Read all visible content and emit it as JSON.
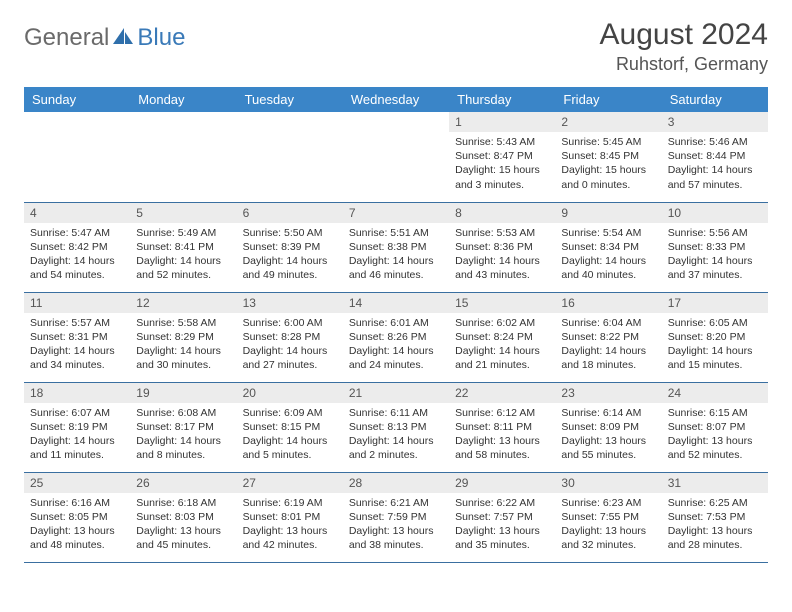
{
  "logo": {
    "part1": "General",
    "part2": "Blue"
  },
  "title": "August 2024",
  "location": "Ruhstorf, Germany",
  "colors": {
    "header_bg": "#3a85c8",
    "header_text": "#ffffff",
    "daynum_bg": "#ececec",
    "border": "#3a6fa0",
    "logo_gray": "#6a6a6a",
    "logo_blue": "#3a7ab8"
  },
  "weekdays": [
    "Sunday",
    "Monday",
    "Tuesday",
    "Wednesday",
    "Thursday",
    "Friday",
    "Saturday"
  ],
  "weeks": [
    [
      null,
      null,
      null,
      null,
      {
        "n": "1",
        "sr": "Sunrise: 5:43 AM",
        "ss": "Sunset: 8:47 PM",
        "d1": "Daylight: 15 hours",
        "d2": "and 3 minutes."
      },
      {
        "n": "2",
        "sr": "Sunrise: 5:45 AM",
        "ss": "Sunset: 8:45 PM",
        "d1": "Daylight: 15 hours",
        "d2": "and 0 minutes."
      },
      {
        "n": "3",
        "sr": "Sunrise: 5:46 AM",
        "ss": "Sunset: 8:44 PM",
        "d1": "Daylight: 14 hours",
        "d2": "and 57 minutes."
      }
    ],
    [
      {
        "n": "4",
        "sr": "Sunrise: 5:47 AM",
        "ss": "Sunset: 8:42 PM",
        "d1": "Daylight: 14 hours",
        "d2": "and 54 minutes."
      },
      {
        "n": "5",
        "sr": "Sunrise: 5:49 AM",
        "ss": "Sunset: 8:41 PM",
        "d1": "Daylight: 14 hours",
        "d2": "and 52 minutes."
      },
      {
        "n": "6",
        "sr": "Sunrise: 5:50 AM",
        "ss": "Sunset: 8:39 PM",
        "d1": "Daylight: 14 hours",
        "d2": "and 49 minutes."
      },
      {
        "n": "7",
        "sr": "Sunrise: 5:51 AM",
        "ss": "Sunset: 8:38 PM",
        "d1": "Daylight: 14 hours",
        "d2": "and 46 minutes."
      },
      {
        "n": "8",
        "sr": "Sunrise: 5:53 AM",
        "ss": "Sunset: 8:36 PM",
        "d1": "Daylight: 14 hours",
        "d2": "and 43 minutes."
      },
      {
        "n": "9",
        "sr": "Sunrise: 5:54 AM",
        "ss": "Sunset: 8:34 PM",
        "d1": "Daylight: 14 hours",
        "d2": "and 40 minutes."
      },
      {
        "n": "10",
        "sr": "Sunrise: 5:56 AM",
        "ss": "Sunset: 8:33 PM",
        "d1": "Daylight: 14 hours",
        "d2": "and 37 minutes."
      }
    ],
    [
      {
        "n": "11",
        "sr": "Sunrise: 5:57 AM",
        "ss": "Sunset: 8:31 PM",
        "d1": "Daylight: 14 hours",
        "d2": "and 34 minutes."
      },
      {
        "n": "12",
        "sr": "Sunrise: 5:58 AM",
        "ss": "Sunset: 8:29 PM",
        "d1": "Daylight: 14 hours",
        "d2": "and 30 minutes."
      },
      {
        "n": "13",
        "sr": "Sunrise: 6:00 AM",
        "ss": "Sunset: 8:28 PM",
        "d1": "Daylight: 14 hours",
        "d2": "and 27 minutes."
      },
      {
        "n": "14",
        "sr": "Sunrise: 6:01 AM",
        "ss": "Sunset: 8:26 PM",
        "d1": "Daylight: 14 hours",
        "d2": "and 24 minutes."
      },
      {
        "n": "15",
        "sr": "Sunrise: 6:02 AM",
        "ss": "Sunset: 8:24 PM",
        "d1": "Daylight: 14 hours",
        "d2": "and 21 minutes."
      },
      {
        "n": "16",
        "sr": "Sunrise: 6:04 AM",
        "ss": "Sunset: 8:22 PM",
        "d1": "Daylight: 14 hours",
        "d2": "and 18 minutes."
      },
      {
        "n": "17",
        "sr": "Sunrise: 6:05 AM",
        "ss": "Sunset: 8:20 PM",
        "d1": "Daylight: 14 hours",
        "d2": "and 15 minutes."
      }
    ],
    [
      {
        "n": "18",
        "sr": "Sunrise: 6:07 AM",
        "ss": "Sunset: 8:19 PM",
        "d1": "Daylight: 14 hours",
        "d2": "and 11 minutes."
      },
      {
        "n": "19",
        "sr": "Sunrise: 6:08 AM",
        "ss": "Sunset: 8:17 PM",
        "d1": "Daylight: 14 hours",
        "d2": "and 8 minutes."
      },
      {
        "n": "20",
        "sr": "Sunrise: 6:09 AM",
        "ss": "Sunset: 8:15 PM",
        "d1": "Daylight: 14 hours",
        "d2": "and 5 minutes."
      },
      {
        "n": "21",
        "sr": "Sunrise: 6:11 AM",
        "ss": "Sunset: 8:13 PM",
        "d1": "Daylight: 14 hours",
        "d2": "and 2 minutes."
      },
      {
        "n": "22",
        "sr": "Sunrise: 6:12 AM",
        "ss": "Sunset: 8:11 PM",
        "d1": "Daylight: 13 hours",
        "d2": "and 58 minutes."
      },
      {
        "n": "23",
        "sr": "Sunrise: 6:14 AM",
        "ss": "Sunset: 8:09 PM",
        "d1": "Daylight: 13 hours",
        "d2": "and 55 minutes."
      },
      {
        "n": "24",
        "sr": "Sunrise: 6:15 AM",
        "ss": "Sunset: 8:07 PM",
        "d1": "Daylight: 13 hours",
        "d2": "and 52 minutes."
      }
    ],
    [
      {
        "n": "25",
        "sr": "Sunrise: 6:16 AM",
        "ss": "Sunset: 8:05 PM",
        "d1": "Daylight: 13 hours",
        "d2": "and 48 minutes."
      },
      {
        "n": "26",
        "sr": "Sunrise: 6:18 AM",
        "ss": "Sunset: 8:03 PM",
        "d1": "Daylight: 13 hours",
        "d2": "and 45 minutes."
      },
      {
        "n": "27",
        "sr": "Sunrise: 6:19 AM",
        "ss": "Sunset: 8:01 PM",
        "d1": "Daylight: 13 hours",
        "d2": "and 42 minutes."
      },
      {
        "n": "28",
        "sr": "Sunrise: 6:21 AM",
        "ss": "Sunset: 7:59 PM",
        "d1": "Daylight: 13 hours",
        "d2": "and 38 minutes."
      },
      {
        "n": "29",
        "sr": "Sunrise: 6:22 AM",
        "ss": "Sunset: 7:57 PM",
        "d1": "Daylight: 13 hours",
        "d2": "and 35 minutes."
      },
      {
        "n": "30",
        "sr": "Sunrise: 6:23 AM",
        "ss": "Sunset: 7:55 PM",
        "d1": "Daylight: 13 hours",
        "d2": "and 32 minutes."
      },
      {
        "n": "31",
        "sr": "Sunrise: 6:25 AM",
        "ss": "Sunset: 7:53 PM",
        "d1": "Daylight: 13 hours",
        "d2": "and 28 minutes."
      }
    ]
  ]
}
